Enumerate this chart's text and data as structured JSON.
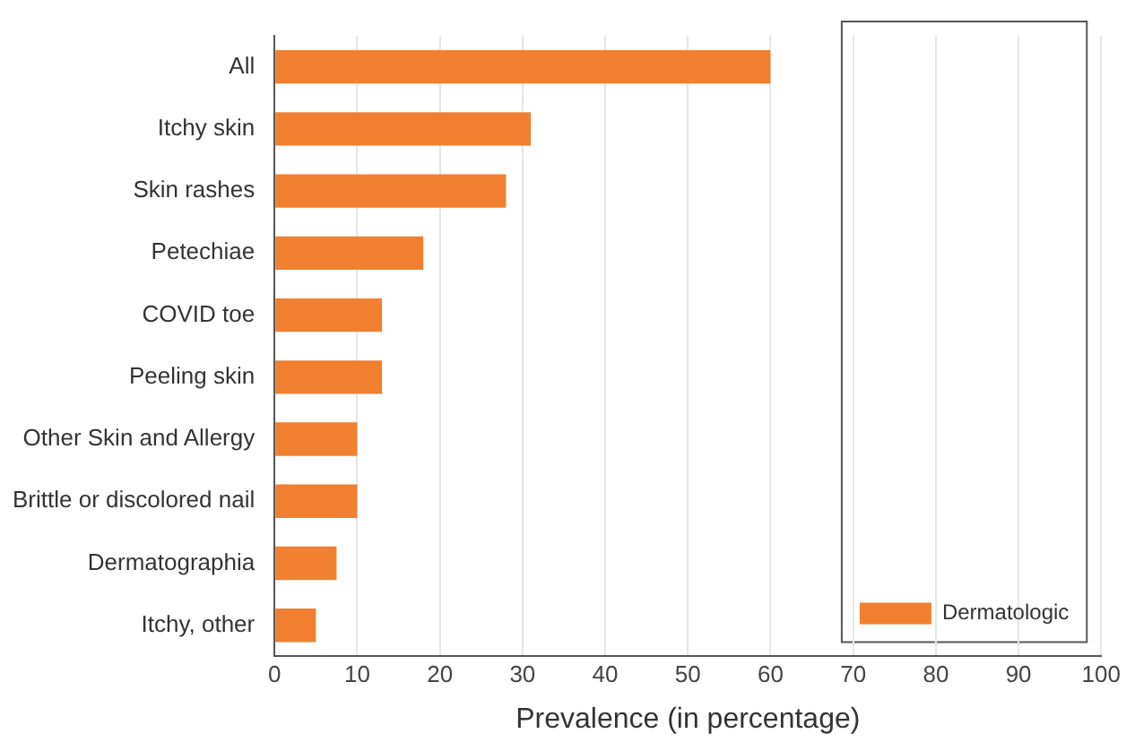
{
  "chart_data": {
    "type": "bar",
    "orientation": "horizontal",
    "xlabel": "Prevalence (in percentage)",
    "categories": [
      "All",
      "Itchy skin",
      "Skin rashes",
      "Petechiae",
      "COVID toe",
      "Peeling skin",
      "Other Skin and Allergy",
      "Brittle or discolored nail",
      "Dermatographia",
      "Itchy, other"
    ],
    "series": [
      {
        "name": "Dermatologic",
        "color": "#f08030",
        "values": [
          60,
          31,
          28,
          18,
          13,
          13,
          10,
          10,
          7.5,
          5
        ]
      }
    ],
    "xlim": [
      0,
      100
    ],
    "xticks": [
      0,
      10,
      20,
      30,
      40,
      50,
      60,
      70,
      80,
      90,
      100
    ],
    "grid": "x",
    "legend": "bottom right"
  }
}
